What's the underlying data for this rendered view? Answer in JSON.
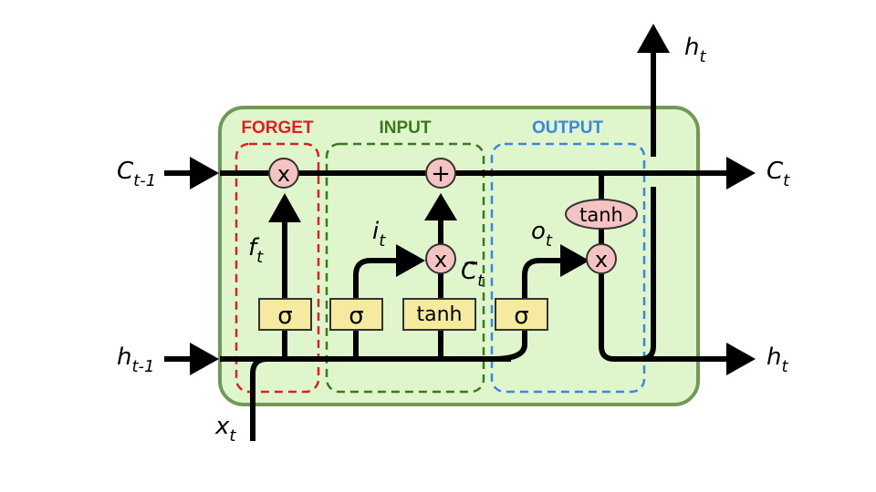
{
  "colors": {
    "cell_fill": "#dff5cc",
    "cell_stroke": "#6f9a55",
    "forget": "#e02020",
    "input": "#3a7a1e",
    "output": "#3a86e0",
    "op_fill": "#f6c3c3",
    "box_fill": "#f6e9a0",
    "box_stroke": "#333333"
  },
  "sections": {
    "forget": "FORGET",
    "input": "INPUT",
    "output": "OUTPUT"
  },
  "labels": {
    "c_prev": {
      "main": "C",
      "sub": "t-1"
    },
    "c_next": {
      "main": "C",
      "sub": "t"
    },
    "h_prev": {
      "main": "h",
      "sub": "t-1"
    },
    "h_next": {
      "main": "h",
      "sub": "t"
    },
    "h_top": {
      "main": "h",
      "sub": "t"
    },
    "x_in": {
      "main": "x",
      "sub": "t"
    },
    "f_t": {
      "main": "f",
      "sub": "t"
    },
    "i_t": {
      "main": "i",
      "sub": "t"
    },
    "c_tilde": {
      "main": "C",
      "sub": "t",
      "accent": "~"
    },
    "o_t": {
      "main": "o",
      "sub": "t"
    }
  },
  "ops": {
    "mult_forget": "x",
    "add_input": "+",
    "mult_input": "x",
    "mult_output": "x",
    "tanh_output": "tanh"
  },
  "boxes": {
    "sigma_forget": "σ",
    "sigma_input": "σ",
    "tanh_input": "tanh",
    "sigma_output": "σ"
  }
}
